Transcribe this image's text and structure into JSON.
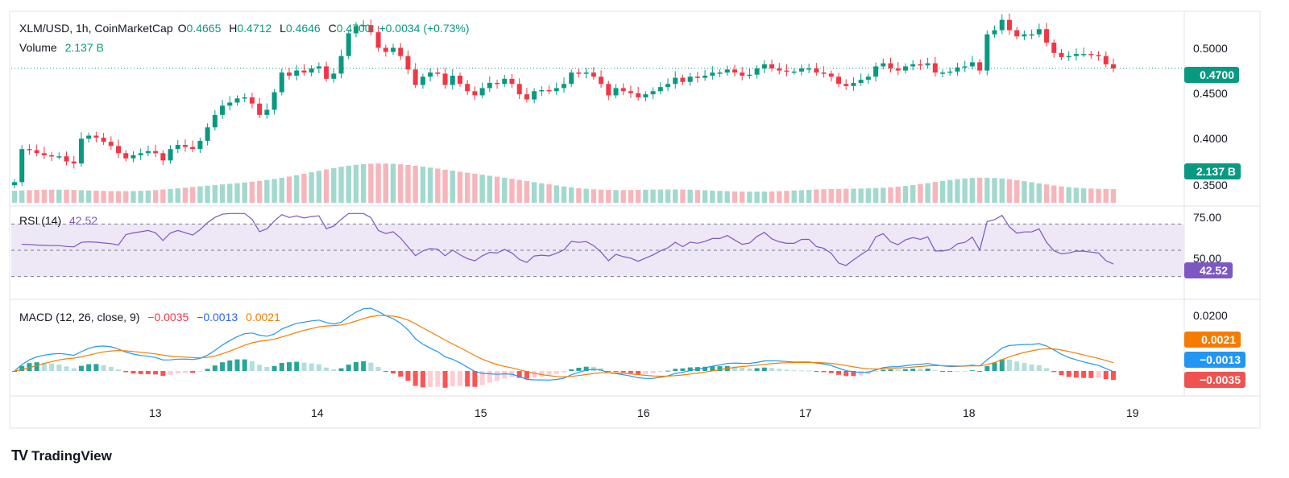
{
  "header": {
    "symbol": "XLM/USD, 1h, CoinMarketCap",
    "open_label": "O",
    "open": "0.4665",
    "high_label": "H",
    "high": "0.4712",
    "low_label": "L",
    "low": "0.4646",
    "close_label": "C",
    "close": "0.4700",
    "change": "+0.0034 (+0.73%)"
  },
  "volume_legend": {
    "label": "Volume",
    "value": "2.137 B"
  },
  "rsi_legend": {
    "label": "RSI (14)",
    "value": "42.52"
  },
  "macd_legend": {
    "label": "MACD (12, 26, close, 9)",
    "hist": "−0.0035",
    "macd": "−0.0013",
    "signal": "0.0021"
  },
  "price_axis": [
    "0.5000",
    "0.4500",
    "0.4000",
    "0.3500"
  ],
  "rsi_axis": [
    "75.00",
    "50.00"
  ],
  "macd_axis": [
    "0.0200"
  ],
  "time_axis": [
    "13",
    "14",
    "15",
    "16",
    "17",
    "18",
    "19"
  ],
  "tags": {
    "price": "0.4700",
    "volume": "2.137 B",
    "rsi": "42.52",
    "signal": "0.0021",
    "macd": "−0.0013",
    "hist": "−0.0035"
  },
  "brand": "TradingView",
  "colors": {
    "up": "#089981",
    "down": "#f23645",
    "rsi": "#7e57c2",
    "macd": "#2962ff",
    "signal": "#f57c00",
    "rsi_band": "#ede7f6"
  },
  "chart_data": {
    "type": "candlestick",
    "interval": "1h",
    "x_range": [
      "12",
      "19"
    ],
    "price_ylim": [
      0.34,
      0.53
    ],
    "closes": [
      0.36,
      0.392,
      0.391,
      0.388,
      0.386,
      0.385,
      0.385,
      0.38,
      0.378,
      0.402,
      0.405,
      0.403,
      0.399,
      0.395,
      0.388,
      0.383,
      0.386,
      0.388,
      0.39,
      0.388,
      0.381,
      0.392,
      0.396,
      0.394,
      0.392,
      0.4,
      0.413,
      0.425,
      0.434,
      0.437,
      0.441,
      0.442,
      0.436,
      0.425,
      0.43,
      0.447,
      0.466,
      0.463,
      0.468,
      0.466,
      0.47,
      0.472,
      0.46,
      0.465,
      0.482,
      0.504,
      0.511,
      0.512,
      0.505,
      0.49,
      0.486,
      0.49,
      0.482,
      0.469,
      0.454,
      0.462,
      0.466,
      0.465,
      0.454,
      0.463,
      0.455,
      0.448,
      0.444,
      0.451,
      0.456,
      0.455,
      0.46,
      0.455,
      0.445,
      0.44,
      0.448,
      0.449,
      0.448,
      0.451,
      0.455,
      0.466,
      0.465,
      0.466,
      0.462,
      0.455,
      0.444,
      0.451,
      0.448,
      0.446,
      0.442,
      0.445,
      0.448,
      0.452,
      0.455,
      0.461,
      0.457,
      0.462,
      0.461,
      0.463,
      0.466,
      0.466,
      0.469,
      0.466,
      0.463,
      0.464,
      0.47,
      0.474,
      0.47,
      0.468,
      0.467,
      0.467,
      0.47,
      0.47,
      0.466,
      0.465,
      0.462,
      0.455,
      0.453,
      0.456,
      0.459,
      0.462,
      0.472,
      0.475,
      0.47,
      0.468,
      0.472,
      0.474,
      0.473,
      0.475,
      0.466,
      0.466,
      0.467,
      0.471,
      0.472,
      0.476,
      0.468,
      0.503,
      0.507,
      0.517,
      0.507,
      0.501,
      0.503,
      0.503,
      0.508,
      0.495,
      0.485,
      0.481,
      0.482,
      0.484,
      0.484,
      0.483,
      0.482,
      0.474,
      0.47
    ]
  }
}
